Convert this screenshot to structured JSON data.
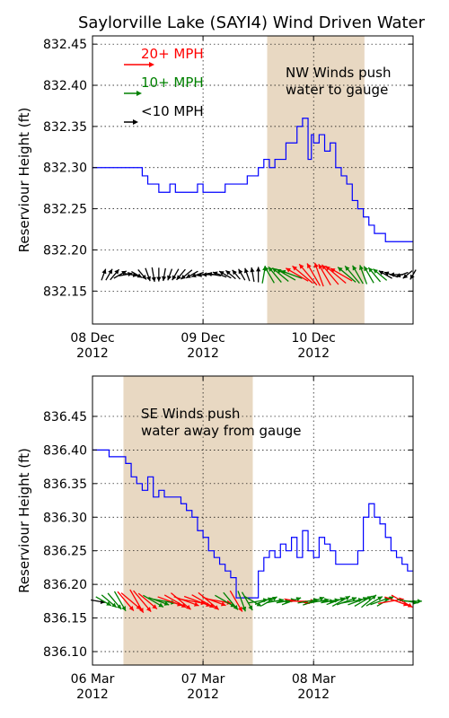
{
  "title": "Saylorville Lake (SAYI4) Wind Driven Water",
  "colors": {
    "level": "#0000ff",
    "shade": "#e8d8c2",
    "red": "#ff0000",
    "green": "#008000",
    "black": "#000000"
  },
  "legend": [
    {
      "label": "20+ MPH",
      "color": "#ff0000"
    },
    {
      "label": "10+ MPH",
      "color": "#008000"
    },
    {
      "label": "<10 MPH",
      "color": "#000000"
    }
  ],
  "chart_data": [
    {
      "type": "line",
      "ylabel": "Reserviour Height (ft)",
      "xlim": [
        0,
        2.9
      ],
      "ylim": [
        832.11,
        832.46
      ],
      "yticks": [
        "832.15",
        "832.20",
        "832.25",
        "832.30",
        "832.35",
        "832.40",
        "832.45"
      ],
      "xticks": [
        {
          "x": 0,
          "l1": "08 Dec",
          "l2": "2012"
        },
        {
          "x": 1,
          "l1": "09 Dec",
          "l2": "2012"
        },
        {
          "x": 2,
          "l1": "10 Dec",
          "l2": "2012"
        }
      ],
      "shade": [
        1.58,
        2.46
      ],
      "annotation": [
        "NW Winds push",
        "water to gauge"
      ],
      "series": [
        {
          "x": [
            0,
            0.1,
            0.2,
            0.3,
            0.4,
            0.45,
            0.5,
            0.55,
            0.6,
            0.65,
            0.7,
            0.75,
            0.8,
            0.85,
            0.9,
            0.95,
            1.0,
            1.05,
            1.1,
            1.15,
            1.2,
            1.25,
            1.3,
            1.35,
            1.4,
            1.45,
            1.5,
            1.55,
            1.6,
            1.65,
            1.7,
            1.75,
            1.8,
            1.85,
            1.9,
            1.95,
            1.98,
            2.0,
            2.05,
            2.1,
            2.15,
            2.2,
            2.25,
            2.3,
            2.35,
            2.4,
            2.45,
            2.5,
            2.55,
            2.6,
            2.65,
            2.7,
            2.75,
            2.8,
            2.85,
            2.9
          ],
          "y": [
            832.3,
            832.3,
            832.3,
            832.3,
            832.3,
            832.29,
            832.28,
            832.28,
            832.27,
            832.27,
            832.28,
            832.27,
            832.27,
            832.27,
            832.27,
            832.28,
            832.27,
            832.27,
            832.27,
            832.27,
            832.28,
            832.28,
            832.28,
            832.28,
            832.29,
            832.29,
            832.3,
            832.31,
            832.3,
            832.31,
            832.31,
            832.33,
            832.33,
            832.35,
            832.36,
            832.31,
            832.34,
            832.33,
            832.34,
            832.32,
            832.33,
            832.3,
            832.29,
            832.28,
            832.26,
            832.25,
            832.24,
            832.23,
            832.22,
            832.22,
            832.21,
            832.21,
            832.21,
            832.21,
            832.21,
            832.21
          ]
        }
      ],
      "wind": {
        "x": [
          0.1,
          0.15,
          0.2,
          0.25,
          0.3,
          0.35,
          0.4,
          0.45,
          0.5,
          0.55,
          0.6,
          0.65,
          0.7,
          0.75,
          0.8,
          0.85,
          0.9,
          0.95,
          1.0,
          1.05,
          1.1,
          1.15,
          1.2,
          1.25,
          1.3,
          1.35,
          1.4,
          1.45,
          1.5,
          1.55,
          1.6,
          1.65,
          1.7,
          1.75,
          1.8,
          1.85,
          1.9,
          1.95,
          2.0,
          2.05,
          2.1,
          2.15,
          2.2,
          2.25,
          2.3,
          2.35,
          2.4,
          2.45,
          2.5,
          2.55,
          2.6,
          2.65,
          2.7,
          2.75,
          2.8,
          2.85,
          2.9
        ],
        "dir": [
          20,
          30,
          40,
          60,
          80,
          100,
          120,
          140,
          160,
          170,
          180,
          190,
          200,
          210,
          220,
          230,
          240,
          250,
          260,
          270,
          280,
          290,
          300,
          310,
          320,
          330,
          340,
          350,
          0,
          10,
          330,
          320,
          310,
          300,
          290,
          300,
          310,
          320,
          330,
          340,
          330,
          320,
          310,
          300,
          310,
          320,
          330,
          340,
          330,
          320,
          310,
          300,
          290,
          270,
          250,
          230,
          210
        ],
        "speed": [
          5,
          6,
          7,
          8,
          7,
          6,
          5,
          6,
          7,
          8,
          7,
          6,
          5,
          6,
          7,
          8,
          7,
          6,
          5,
          6,
          7,
          8,
          7,
          6,
          5,
          6,
          7,
          8,
          9,
          12,
          14,
          15,
          16,
          17,
          18,
          22,
          23,
          24,
          22,
          21,
          20,
          22,
          23,
          21,
          19,
          18,
          16,
          15,
          14,
          13,
          12,
          9,
          8,
          7,
          6,
          5,
          4
        ],
        "base_y": 832.17
      }
    },
    {
      "type": "line",
      "ylabel": "Reserviour Height (ft)",
      "xlim": [
        0,
        2.9
      ],
      "ylim": [
        836.08,
        836.51
      ],
      "yticks": [
        "836.10",
        "836.15",
        "836.20",
        "836.25",
        "836.30",
        "836.35",
        "836.40",
        "836.45"
      ],
      "xticks": [
        {
          "x": 0,
          "l1": "06 Mar",
          "l2": "2012"
        },
        {
          "x": 1,
          "l1": "07 Mar",
          "l2": "2012"
        },
        {
          "x": 2,
          "l1": "08 Mar",
          "l2": "2012"
        }
      ],
      "shade": [
        0.28,
        1.45
      ],
      "annotation": [
        "SE Winds push",
        "water away from gauge"
      ],
      "series": [
        {
          "x": [
            0,
            0.1,
            0.15,
            0.2,
            0.25,
            0.3,
            0.35,
            0.4,
            0.45,
            0.5,
            0.55,
            0.6,
            0.65,
            0.7,
            0.75,
            0.8,
            0.85,
            0.9,
            0.95,
            1.0,
            1.05,
            1.1,
            1.15,
            1.2,
            1.25,
            1.3,
            1.35,
            1.4,
            1.45,
            1.5,
            1.55,
            1.6,
            1.65,
            1.7,
            1.75,
            1.8,
            1.85,
            1.9,
            1.95,
            2.0,
            2.05,
            2.1,
            2.15,
            2.2,
            2.25,
            2.3,
            2.35,
            2.4,
            2.45,
            2.5,
            2.55,
            2.6,
            2.65,
            2.7,
            2.75,
            2.8,
            2.85,
            2.9
          ],
          "y": [
            836.4,
            836.4,
            836.39,
            836.39,
            836.39,
            836.38,
            836.36,
            836.35,
            836.34,
            836.36,
            836.33,
            836.34,
            836.33,
            836.33,
            836.33,
            836.32,
            836.31,
            836.3,
            836.28,
            836.27,
            836.25,
            836.24,
            836.23,
            836.22,
            836.21,
            836.18,
            836.18,
            836.18,
            836.18,
            836.22,
            836.24,
            836.25,
            836.24,
            836.26,
            836.25,
            836.27,
            836.24,
            836.28,
            836.25,
            836.24,
            836.27,
            836.26,
            836.25,
            836.23,
            836.23,
            836.23,
            836.23,
            836.25,
            836.3,
            836.32,
            836.3,
            836.29,
            836.27,
            836.25,
            836.24,
            836.23,
            836.22,
            836.22
          ]
        }
      ],
      "wind": {
        "x": [
          0.05,
          0.1,
          0.15,
          0.2,
          0.25,
          0.3,
          0.35,
          0.4,
          0.45,
          0.5,
          0.55,
          0.6,
          0.65,
          0.7,
          0.75,
          0.8,
          0.85,
          0.9,
          0.95,
          1.0,
          1.05,
          1.1,
          1.15,
          1.2,
          1.25,
          1.3,
          1.35,
          1.4,
          1.45,
          1.5,
          1.55,
          1.6,
          1.65,
          1.7,
          1.75,
          1.8,
          1.85,
          1.9,
          1.95,
          2.0,
          2.05,
          2.1,
          2.15,
          2.2,
          2.25,
          2.3,
          2.35,
          2.4,
          2.45,
          2.5,
          2.55,
          2.6,
          2.65,
          2.7,
          2.75,
          2.8,
          2.85,
          2.9
        ],
        "dir": [
          100,
          120,
          130,
          140,
          150,
          140,
          130,
          150,
          140,
          130,
          120,
          110,
          100,
          110,
          120,
          130,
          110,
          100,
          110,
          120,
          130,
          110,
          100,
          120,
          140,
          150,
          160,
          150,
          120,
          80,
          70,
          60,
          80,
          90,
          80,
          70,
          100,
          90,
          80,
          70,
          80,
          90,
          80,
          70,
          60,
          70,
          80,
          70,
          60,
          50,
          60,
          70,
          60,
          80,
          110,
          120,
          100,
          90
        ],
        "speed": [
          8,
          12,
          14,
          16,
          18,
          21,
          22,
          23,
          24,
          20,
          19,
          17,
          18,
          22,
          21,
          22,
          23,
          24,
          25,
          22,
          23,
          21,
          20,
          19,
          18,
          20,
          17,
          16,
          15,
          14,
          13,
          12,
          12,
          13,
          14,
          15,
          22,
          21,
          16,
          18,
          15,
          14,
          13,
          14,
          15,
          16,
          17,
          16,
          15,
          14,
          13,
          15,
          14,
          22,
          21,
          20,
          16,
          12
        ],
        "base_y": 836.175
      }
    }
  ]
}
